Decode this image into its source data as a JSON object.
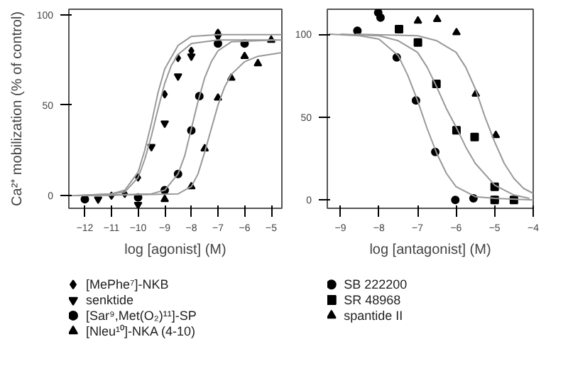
{
  "chart_data": [
    {
      "type": "scatter",
      "xlabel": "log [agonist] (M)",
      "ylabel": "Ca²⁺ mobilization (% of control)",
      "xlim": [
        -12.6,
        -4.6
      ],
      "ylim": [
        -7,
        103
      ],
      "xticks": [
        -12,
        -11,
        -10,
        -9,
        -8,
        -7,
        -6,
        -5
      ],
      "yticks": [
        0,
        50,
        100
      ],
      "legend": "bottom",
      "series": [
        {
          "name": "[MePhe⁷]-NKB",
          "marker": "diamond",
          "color": "#000000",
          "x": [
            -11,
            -10.5,
            -10,
            -9,
            -8.5,
            -8,
            -7
          ],
          "values": [
            0,
            1,
            10,
            56,
            76,
            80,
            90
          ]
        },
        {
          "name": "senktide",
          "marker": "triangle_down",
          "color": "#000000",
          "x": [
            -11.5,
            -10,
            -9.5,
            -9,
            -8.5,
            -8,
            -7
          ],
          "values": [
            -2,
            -5,
            27,
            40,
            66,
            77,
            88
          ]
        },
        {
          "name": "[Sar⁹,Met(O₂)¹¹]-SP",
          "marker": "circle",
          "color": "#000000",
          "x": [
            -12,
            -10,
            -9,
            -8.5,
            -8,
            -7.7,
            -7,
            -6
          ],
          "values": [
            -2,
            -1,
            3,
            12,
            36,
            55,
            84,
            84
          ]
        },
        {
          "name": "[Nleu¹⁰]-NKA (4-10)",
          "marker": "triangle",
          "color": "#000000",
          "x": [
            -9,
            -8,
            -7.5,
            -7,
            -6.5,
            -6,
            -5.5,
            -5
          ],
          "values": [
            -2,
            5,
            26,
            54,
            65,
            77,
            73,
            86
          ]
        },
        {
          "type": "line",
          "color": "#999999",
          "x": [
            -12.5,
            -11,
            -10.5,
            -10,
            -9.75,
            -9.5,
            -9.25,
            -9,
            -8.5,
            -8,
            -7,
            -4.6
          ],
          "values": [
            0,
            1,
            3,
            13,
            25,
            40,
            57,
            70,
            83,
            88,
            89,
            89
          ]
        },
        {
          "type": "line",
          "color": "#999999",
          "x": [
            -12.3,
            -11,
            -10.5,
            -10,
            -9.75,
            -9.5,
            -9.25,
            -9,
            -8.75,
            -8.5,
            -8,
            -7,
            -4.6
          ],
          "values": [
            0,
            1,
            2,
            10,
            20,
            33,
            48,
            62,
            72,
            78,
            84,
            86,
            86
          ]
        },
        {
          "type": "line",
          "color": "#999999",
          "x": [
            -12.1,
            -9.5,
            -9,
            -8.5,
            -8.25,
            -8,
            -7.75,
            -7.5,
            -7.25,
            -7,
            -6.5,
            -4.8
          ],
          "values": [
            0,
            1,
            3,
            12,
            22,
            37,
            52,
            65,
            74,
            80,
            85,
            86
          ]
        },
        {
          "type": "line",
          "color": "#999999",
          "x": [
            -11.9,
            -8.5,
            -8,
            -7.75,
            -7.5,
            -7.25,
            -7,
            -6.75,
            -6.5,
            -6,
            -5.5,
            -4.6
          ],
          "values": [
            0,
            1,
            5,
            12,
            24,
            37,
            50,
            60,
            67,
            74,
            77,
            79
          ]
        }
      ]
    },
    {
      "type": "scatter",
      "xlabel": "log [antagonist] (M)",
      "xlim": [
        -9.34,
        -4
      ],
      "ylim": [
        -5,
        115
      ],
      "xticks": [
        -9,
        -8,
        -7,
        -6,
        -5,
        -4
      ],
      "yticks": [
        0,
        50,
        100
      ],
      "legend": "bottom",
      "series": [
        {
          "name": "SB 222200",
          "marker": "circle",
          "color": "#000000",
          "x": [
            -8.56,
            -8.02,
            -7.96,
            -7.54,
            -7.04,
            -6.54,
            -6.02,
            -5.55,
            -5.0
          ],
          "values": [
            102,
            113,
            110,
            86,
            60,
            29,
            0,
            1,
            0
          ]
        },
        {
          "name": "SR 48968",
          "marker": "square",
          "color": "#000000",
          "x": [
            -7.48,
            -6.99,
            -6.51,
            -5.99,
            -5.52,
            -5.0,
            -5.0,
            -4.5
          ],
          "values": [
            103,
            95,
            70,
            42,
            38,
            8,
            0,
            0
          ]
        },
        {
          "name": "spantide II",
          "marker": "triangle",
          "color": "#000000",
          "x": [
            -6.99,
            -6.49,
            -5.99,
            -5.49,
            -4.97
          ],
          "values": [
            108,
            109,
            101,
            64,
            39
          ]
        },
        {
          "type": "line",
          "color": "#999999",
          "x": [
            -9.3,
            -8.5,
            -8,
            -7.5,
            -7.25,
            -7,
            -6.75,
            -6.5,
            -6.25,
            -6,
            -5.5,
            -5,
            -4
          ],
          "values": [
            100,
            99,
            97,
            87,
            75,
            60,
            43,
            28,
            16,
            8,
            2,
            1,
            0
          ]
        },
        {
          "type": "line",
          "color": "#999999",
          "x": [
            -9.0,
            -8,
            -7.5,
            -7,
            -6.75,
            -6.5,
            -6.25,
            -6,
            -5.75,
            -5.5,
            -5,
            -4.5,
            -4.1
          ],
          "values": [
            100,
            99,
            96,
            89,
            80,
            68,
            55,
            44,
            32,
            22,
            9,
            3,
            1
          ]
        },
        {
          "type": "line",
          "color": "#999999",
          "x": [
            -8.6,
            -7,
            -6.5,
            -6,
            -5.75,
            -5.5,
            -5.25,
            -5,
            -4.75,
            -4.5,
            -4.25,
            -4
          ],
          "values": [
            100,
            99,
            96,
            89,
            80,
            67,
            50,
            35,
            22,
            13,
            7,
            4
          ]
        }
      ]
    }
  ]
}
